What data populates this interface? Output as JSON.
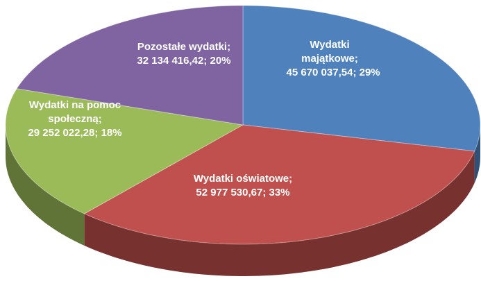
{
  "chart_data": {
    "type": "pie",
    "categories": [
      "Wydatki majątkowe",
      "Wydatki oświatowe",
      "Wydatki na pomoc społeczną",
      "Pozostałe wydatki"
    ],
    "values": [
      45670037.54,
      52977530.67,
      29252022.28,
      32134416.42
    ],
    "value_labels": [
      "45 670 037,54",
      "52 977 530,67",
      "29 252 022,28",
      "32 134 416,42"
    ],
    "percent_labels": [
      "29%",
      "33%",
      "18%",
      "20%"
    ],
    "label_separator": ";",
    "colors": [
      "#4f81bd",
      "#c0504d",
      "#9bbb59",
      "#8064a2"
    ]
  }
}
